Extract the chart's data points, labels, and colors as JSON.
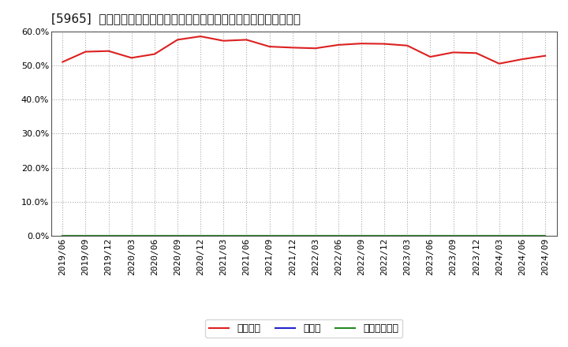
{
  "title": "[5965]  自己資本、のれん、繰延税金資産の総資産に対する比率の推移",
  "x_labels": [
    "2019/06",
    "2019/09",
    "2019/12",
    "2020/03",
    "2020/06",
    "2020/09",
    "2020/12",
    "2021/03",
    "2021/06",
    "2021/09",
    "2021/12",
    "2022/03",
    "2022/06",
    "2022/09",
    "2022/12",
    "2023/03",
    "2023/06",
    "2023/09",
    "2023/12",
    "2024/03",
    "2024/06",
    "2024/09"
  ],
  "jiko_shihon": [
    51.0,
    54.0,
    54.2,
    52.2,
    53.3,
    57.5,
    58.5,
    57.2,
    57.5,
    55.5,
    55.2,
    55.0,
    56.0,
    56.4,
    56.3,
    55.8,
    52.5,
    53.8,
    53.6,
    50.5,
    51.8,
    52.8
  ],
  "noren": [
    0,
    0,
    0,
    0,
    0,
    0,
    0,
    0,
    0,
    0,
    0,
    0,
    0,
    0,
    0,
    0,
    0,
    0,
    0,
    0,
    0,
    0
  ],
  "kurinobe": [
    0,
    0,
    0,
    0,
    0,
    0,
    0,
    0,
    0,
    0,
    0,
    0,
    0,
    0,
    0,
    0,
    0,
    0,
    0,
    0,
    0,
    0
  ],
  "line_color_jiko": "#dd2020",
  "line_color_noren": "#2222cc",
  "line_color_kurinobe": "#228822",
  "legend_labels": [
    "自己資本",
    "のれん",
    "繰延税金資産"
  ],
  "ylim": [
    0,
    60
  ],
  "yticks": [
    0,
    10,
    20,
    30,
    40,
    50,
    60
  ],
  "background_color": "#ffffff",
  "plot_bg_color": "#ffffff",
  "grid_color": "#aaaaaa",
  "title_fontsize": 11,
  "axis_fontsize": 8,
  "legend_fontsize": 9
}
